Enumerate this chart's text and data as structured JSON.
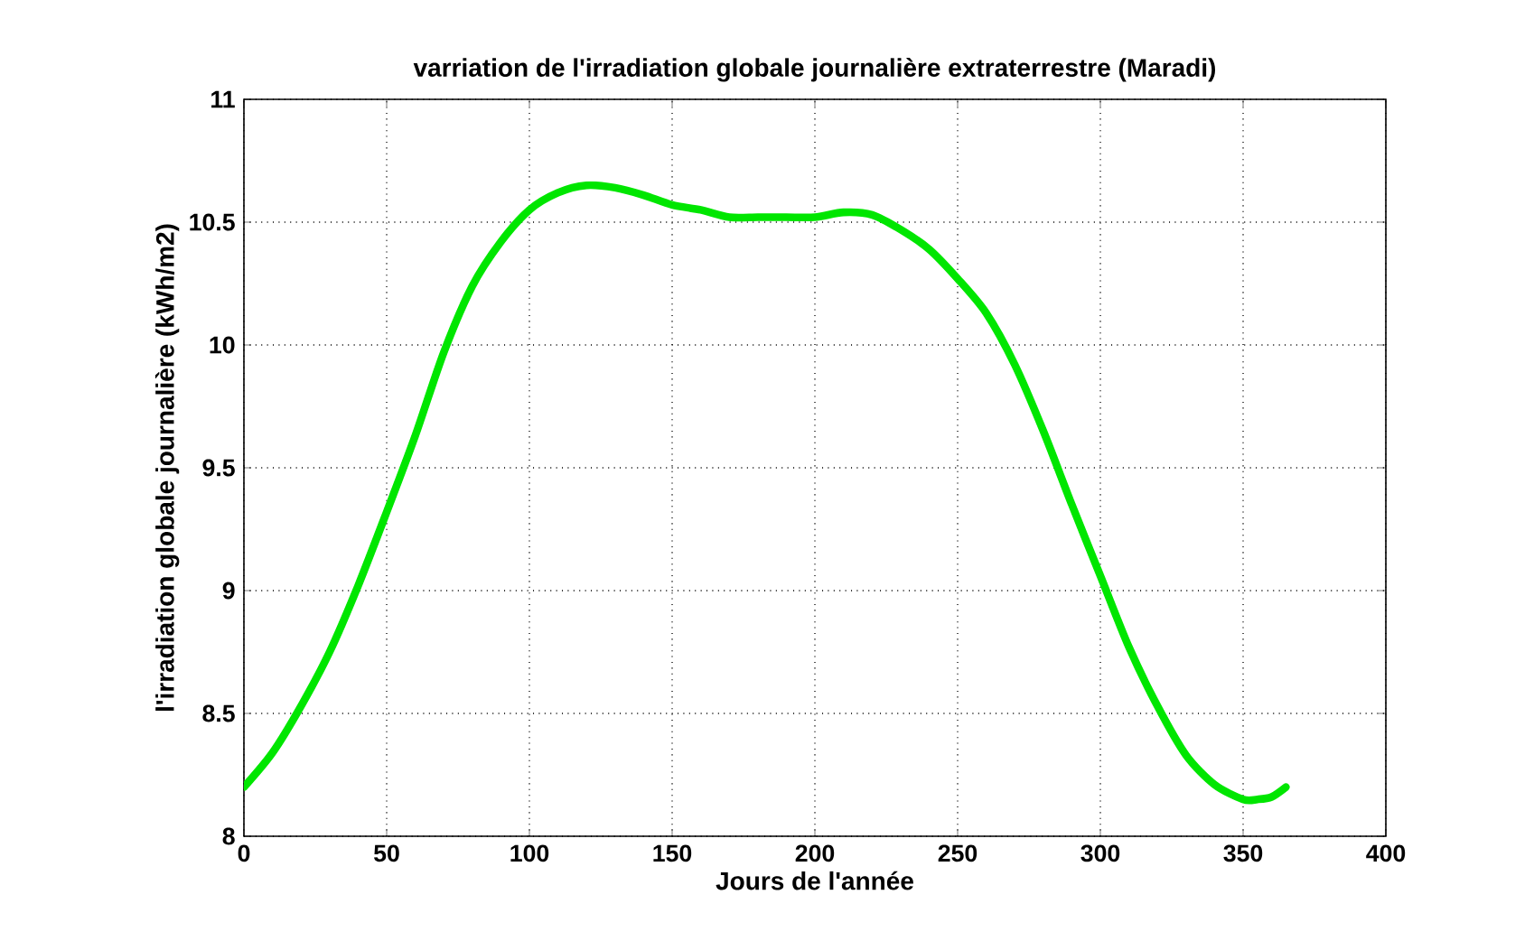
{
  "chart_data": {
    "type": "line",
    "title": "varriation de l'irradiation globale journalière extraterrestre (Maradi)",
    "xlabel": "Jours de l'année",
    "ylabel": "l'irradiation globale journalière (kWh/m2)",
    "x": [
      0,
      10,
      20,
      30,
      40,
      50,
      60,
      70,
      80,
      90,
      100,
      110,
      120,
      130,
      140,
      150,
      160,
      170,
      180,
      190,
      200,
      210,
      220,
      230,
      240,
      250,
      260,
      270,
      280,
      290,
      300,
      310,
      320,
      330,
      340,
      350,
      355,
      360,
      365
    ],
    "series": [
      {
        "color": "#00e600",
        "values": [
          8.2,
          8.34,
          8.53,
          8.75,
          9.02,
          9.32,
          9.63,
          9.97,
          10.24,
          10.42,
          10.55,
          10.62,
          10.65,
          10.64,
          10.61,
          10.57,
          10.55,
          10.52,
          10.52,
          10.52,
          10.52,
          10.54,
          10.53,
          10.47,
          10.39,
          10.27,
          10.13,
          9.92,
          9.65,
          9.35,
          9.06,
          8.77,
          8.53,
          8.33,
          8.21,
          8.15,
          8.15,
          8.16,
          8.2
        ]
      }
    ],
    "xlim": [
      0,
      400
    ],
    "ylim": [
      8,
      11
    ],
    "xticks": [
      0,
      50,
      100,
      150,
      200,
      250,
      300,
      350,
      400
    ],
    "yticks": [
      8,
      8.5,
      9,
      9.5,
      10,
      10.5,
      11
    ],
    "grid": true
  }
}
